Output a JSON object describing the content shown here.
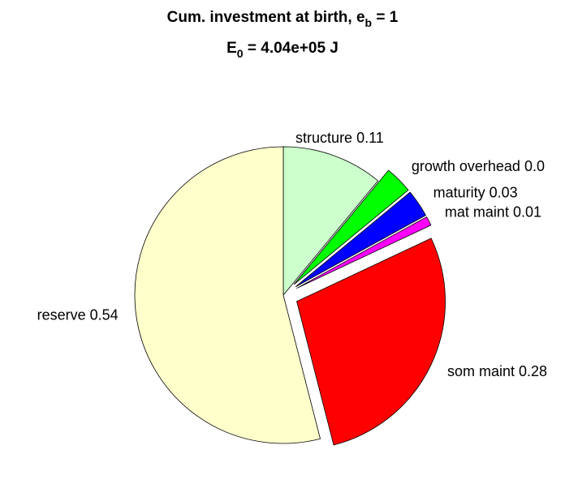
{
  "chart_data": {
    "type": "pie",
    "title_lines": [
      {
        "text": "Cum. investment at birth, e",
        "sub": "b",
        "after": " = 1"
      },
      {
        "text": "E",
        "sub": "0",
        "after": " = 4.04e+05 J"
      }
    ],
    "values": [
      0.11,
      0.03,
      0.03,
      0.01,
      0.28,
      0.54
    ],
    "value_labels": [
      "structure 0.11",
      "growth overhead 0.0",
      "maturity 0.03",
      "mat maint 0.01",
      "som maint 0.28",
      "reserve 0.54"
    ],
    "colors": [
      "#ccffcc",
      "#00ff00",
      "#0000ff",
      "#ff00ff",
      "#ff0000",
      "#ffffcc"
    ],
    "explode": [
      false,
      true,
      true,
      true,
      true,
      false
    ]
  }
}
